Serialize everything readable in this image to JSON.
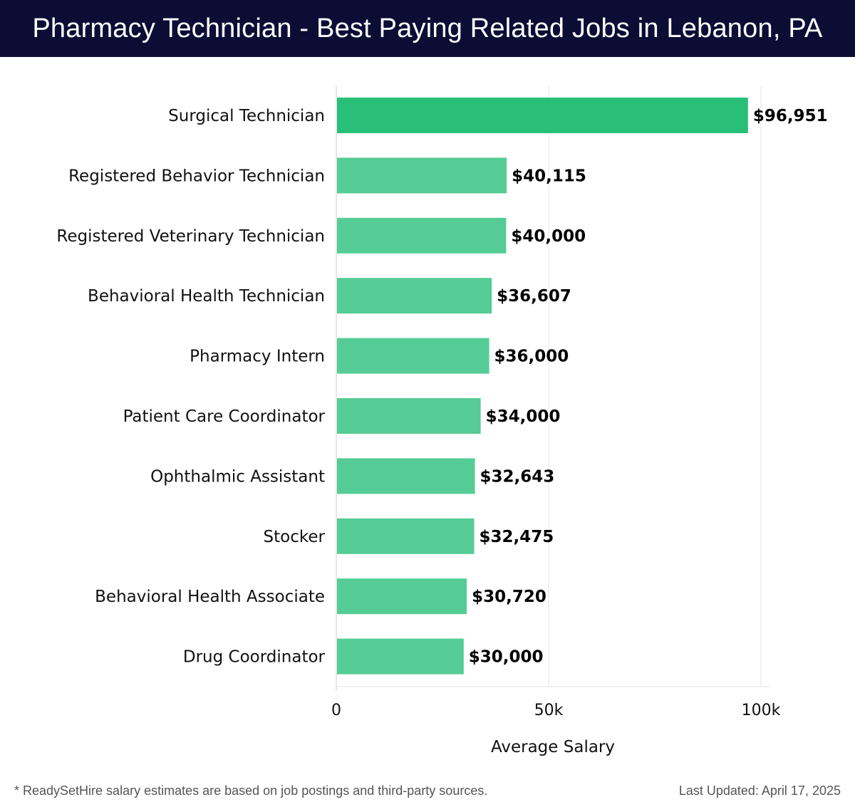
{
  "header": {
    "title": "Pharmacy Technician - Best Paying Related Jobs in Lebanon, PA"
  },
  "chart_data": {
    "type": "bar",
    "orientation": "horizontal",
    "categories": [
      "Surgical Technician",
      "Registered Behavior Technician",
      "Registered Veterinary Technician",
      "Behavioral Health Technician",
      "Pharmacy Intern",
      "Patient Care Coordinator",
      "Ophthalmic Assistant",
      "Stocker",
      "Behavioral Health Associate",
      "Drug Coordinator"
    ],
    "values": [
      96951,
      40115,
      40000,
      36607,
      36000,
      34000,
      32643,
      32475,
      30720,
      30000
    ],
    "value_labels": [
      "$96,951",
      "$40,115",
      "$40,000",
      "$36,607",
      "$36,000",
      "$34,000",
      "$32,643",
      "$32,475",
      "$30,720",
      "$30,000"
    ],
    "xlabel": "Average Salary",
    "xlim": [
      0,
      100000
    ],
    "ticks": [
      {
        "value": 0,
        "label": "0"
      },
      {
        "value": 50000,
        "label": "50k"
      },
      {
        "value": 100000,
        "label": "100k"
      }
    ],
    "grid": true,
    "colors": {
      "highlight": "#2abf78",
      "bar": "#55cc95",
      "grid": "#e6e6e6",
      "axis": "#cccccc",
      "text": "#111111"
    }
  },
  "footer": {
    "note": "* ReadySetHire salary estimates are based on job postings and third-party sources.",
    "updated": "Last Updated: April 17, 2025"
  }
}
